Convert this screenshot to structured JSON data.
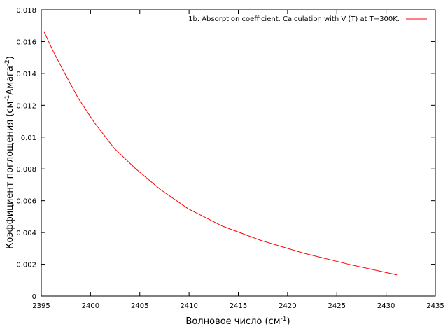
{
  "chart_data": {
    "type": "line",
    "xlabel": "Волновое число (см",
    "xlabel_sup": "-1",
    "xlabel_end": ")",
    "ylabel": "Коэффициент поглощения (см",
    "ylabel_sup1": "-1",
    "ylabel_mid": "Амага",
    "ylabel_sup2": "-2",
    "ylabel_end": ")",
    "xlim": [
      2395,
      2435
    ],
    "ylim": [
      0,
      0.018
    ],
    "xticks": [
      2395,
      2400,
      2405,
      2410,
      2415,
      2420,
      2425,
      2430,
      2435
    ],
    "yticks": [
      0,
      0.002,
      0.004,
      0.006,
      0.008,
      0.01,
      0.012,
      0.014,
      0.016,
      0.018
    ],
    "ytick_labels": [
      "0",
      "0.002",
      "0.004",
      "0.006",
      "0.008",
      "0.01",
      "0.012",
      "0.014",
      "0.016",
      "0.018"
    ],
    "grid": false,
    "legend_position": "top-right",
    "series": [
      {
        "name": "1b. Absorption coefficient. Calculation with V (T) at T=300K.",
        "color": "#ff0000",
        "x": [
          2395.3,
          2396.2,
          2397.3,
          2398.7,
          2400.4,
          2402.4,
          2404.6,
          2407.1,
          2409.9,
          2413.4,
          2417.3,
          2421.6,
          2426.2,
          2431.1
        ],
        "y": [
          0.0166,
          0.0154,
          0.0141,
          0.0125,
          0.0109,
          0.0093,
          0.008,
          0.0067,
          0.0055,
          0.0044,
          0.0035,
          0.0027,
          0.002,
          0.00133
        ]
      }
    ]
  }
}
